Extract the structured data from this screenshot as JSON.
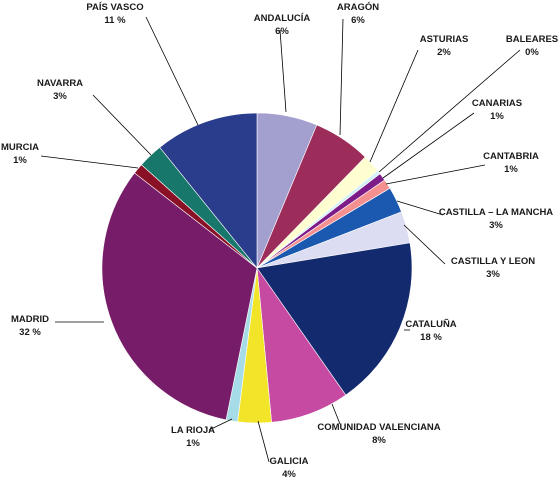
{
  "chart_data": {
    "type": "pie",
    "title": "",
    "legend": "none",
    "slices": [
      {
        "label": "ANDALUCÍA",
        "value_text": "6%",
        "value": 6.3,
        "color": "#a39fcf"
      },
      {
        "label": "ARAGÓN",
        "value_text": "6%",
        "value": 6.0,
        "color": "#9c2d5a"
      },
      {
        "label": "ASTURIAS",
        "value_text": "2%",
        "value": 1.9,
        "color": "#fefed0"
      },
      {
        "label": "BALEARES",
        "value_text": "0%",
        "value": 0.4,
        "color": "#d2f0f5"
      },
      {
        "label": "CANARIAS",
        "value_text": "1%",
        "value": 0.8,
        "color": "#7d1c88"
      },
      {
        "label": "CANTABRIA",
        "value_text": "1%",
        "value": 1.0,
        "color": "#f59090"
      },
      {
        "label": "CASTILLA – LA MANCHA",
        "value_text": "3%",
        "value": 2.7,
        "color": "#1b58b0"
      },
      {
        "label": "CASTILLA Y LEON",
        "value_text": "3%",
        "value": 3.3,
        "color": "#dcdcf2"
      },
      {
        "label": "CATALUÑA",
        "value_text": "18 %",
        "value": 17.9,
        "color": "#142a6e"
      },
      {
        "label": "COMUNIDAD VALENCIANA",
        "value_text": "8%",
        "value": 8.2,
        "color": "#c64aa2"
      },
      {
        "label": "GALICIA",
        "value_text": "4%",
        "value": 3.5,
        "color": "#f2e428"
      },
      {
        "label": "LA RIOJA",
        "value_text": "1%",
        "value": 1.2,
        "color": "#a6dbe8"
      },
      {
        "label": "MADRID",
        "value_text": "32 %",
        "value": 32.3,
        "color": "#761c68"
      },
      {
        "label": "MURCIA",
        "value_text": "1%",
        "value": 1.1,
        "color": "#8a1026"
      },
      {
        "label": "NAVARRA",
        "value_text": "3%",
        "value": 2.6,
        "color": "#16776a"
      },
      {
        "label": "PAÍS VASCO",
        "value_text": "11 %",
        "value": 10.8,
        "color": "#2a3c8c"
      }
    ]
  }
}
